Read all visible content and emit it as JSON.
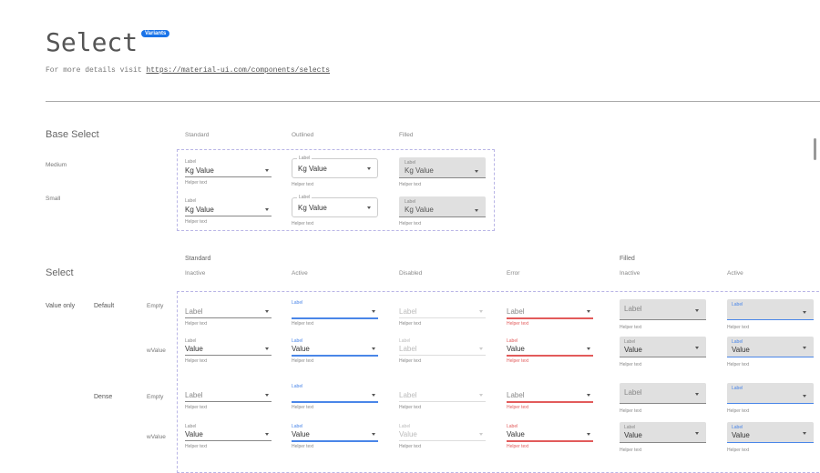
{
  "header": {
    "title": "Select",
    "badge": "Variants",
    "subtitle_prefix": "For more details visit ",
    "link": "https://material-ui.com/components/selects"
  },
  "base": {
    "title": "Base Select",
    "columns": [
      "Standard",
      "Outlined",
      "Filled"
    ],
    "rows": [
      "Medium",
      "Small"
    ],
    "label": "Label",
    "prefix": "Kg",
    "value": "Value",
    "helper": "Helper text"
  },
  "select": {
    "title": "Select",
    "group_standard": "Standard",
    "group_filled": "Filled",
    "columns": [
      "Inactive",
      "Active",
      "Disabled",
      "Error",
      "Inactive",
      "Active"
    ],
    "group_value_only": "Value only",
    "densities": [
      "Default",
      "Dense"
    ],
    "kinds": [
      "Empty",
      "wValue"
    ],
    "label": "Label",
    "value": "Value",
    "helper": "Helper text",
    "disabled_default_value": "Label"
  },
  "colors": {
    "accent": "#4a86e8",
    "error": "#e25b5b",
    "filled_bg": "#e0e0e0",
    "dashed": "#b9b5e6",
    "badge": "#1a73e8"
  }
}
